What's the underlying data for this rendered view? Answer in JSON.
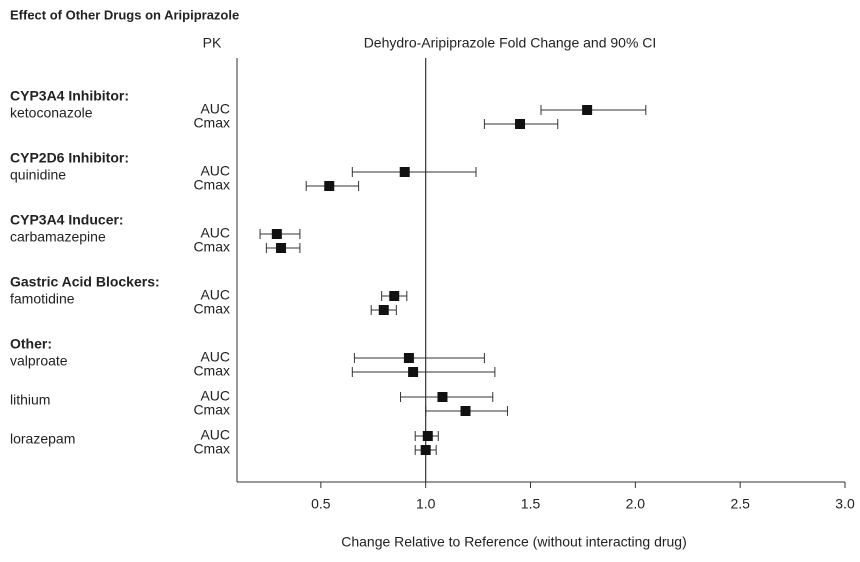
{
  "chart_data": {
    "type": "forest",
    "title": "Effect of Other Drugs on Aripiprazole",
    "pk_header": "PK",
    "subtitle": "Dehydro-Aripiprazole Fold Change and 90% CI",
    "xlabel": "Change Relative to Reference (without interacting drug)",
    "xlim": [
      0.1,
      3.0
    ],
    "xticks": [
      0.5,
      {
        "value": 1,
        "label": "1.0"
      },
      1.5,
      {
        "value": 2,
        "label": "2.0"
      },
      2.5,
      {
        "value": 3,
        "label": "3.0"
      }
    ],
    "reference": 1,
    "marker_color": "#111111",
    "groups": [
      {
        "label": "CYP3A4 Inhibitor:",
        "drugs": [
          {
            "name": "ketoconazole",
            "rows": [
              {
                "pk": "AUC",
                "value": 1.77,
                "low": 1.55,
                "high": 2.05
              },
              {
                "pk": "Cmax",
                "value": 1.45,
                "low": 1.28,
                "high": 1.63
              }
            ]
          }
        ]
      },
      {
        "label": "CYP2D6 Inhibitor:",
        "drugs": [
          {
            "name": "quinidine",
            "rows": [
              {
                "pk": "AUC",
                "value": 0.9,
                "low": 0.65,
                "high": 1.24
              },
              {
                "pk": "Cmax",
                "value": 0.54,
                "low": 0.43,
                "high": 0.68
              }
            ]
          }
        ]
      },
      {
        "label": "CYP3A4 Inducer:",
        "drugs": [
          {
            "name": "carbamazepine",
            "rows": [
              {
                "pk": "AUC",
                "value": 0.29,
                "low": 0.21,
                "high": 0.4
              },
              {
                "pk": "Cmax",
                "value": 0.31,
                "low": 0.24,
                "high": 0.4
              }
            ]
          }
        ]
      },
      {
        "label": "Gastric Acid Blockers:",
        "drugs": [
          {
            "name": "famotidine",
            "rows": [
              {
                "pk": "AUC",
                "value": 0.85,
                "low": 0.79,
                "high": 0.91
              },
              {
                "pk": "Cmax",
                "value": 0.8,
                "low": 0.74,
                "high": 0.86
              }
            ]
          }
        ]
      },
      {
        "label": "Other:",
        "drugs": [
          {
            "name": "valproate",
            "rows": [
              {
                "pk": "AUC",
                "value": 0.92,
                "low": 0.66,
                "high": 1.28
              },
              {
                "pk": "Cmax",
                "value": 0.94,
                "low": 0.65,
                "high": 1.33
              }
            ]
          },
          {
            "name": "lithium",
            "rows": [
              {
                "pk": "AUC",
                "value": 1.08,
                "low": 0.88,
                "high": 1.32
              },
              {
                "pk": "Cmax",
                "value": 1.19,
                "low": 1.0,
                "high": 1.39
              }
            ]
          },
          {
            "name": "lorazepam",
            "rows": [
              {
                "pk": "AUC",
                "value": 1.01,
                "low": 0.95,
                "high": 1.06
              },
              {
                "pk": "Cmax",
                "value": 1.0,
                "low": 0.95,
                "high": 1.05
              }
            ]
          }
        ]
      }
    ]
  }
}
